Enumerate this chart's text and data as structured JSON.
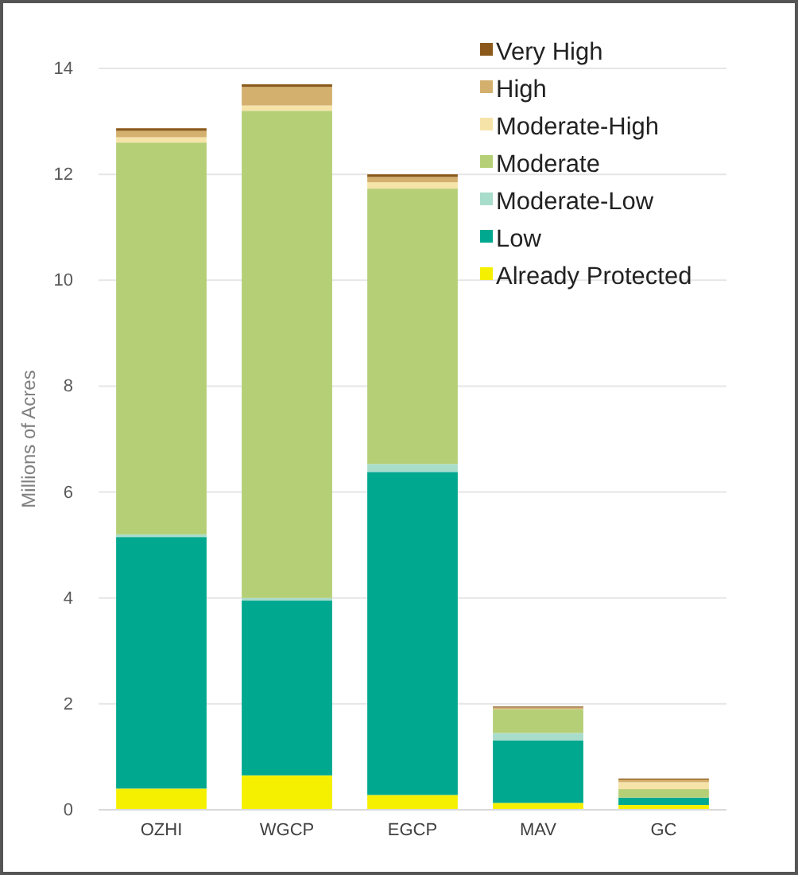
{
  "chart_data": {
    "type": "bar",
    "stacked": true,
    "ylabel": "Millions of Acres",
    "categories": [
      "OZHI",
      "WGCP",
      "EGCP",
      "MAV",
      "GC"
    ],
    "ylim": [
      0,
      14
    ],
    "yticks": [
      0,
      2,
      4,
      6,
      8,
      10,
      12,
      14
    ],
    "grid": "y",
    "legend": "top right",
    "series": [
      {
        "name": "Already Protected",
        "color": "#f5f000",
        "values": [
          0.4,
          0.65,
          0.28,
          0.13,
          0.09
        ]
      },
      {
        "name": "Low",
        "color": "#00a88f",
        "values": [
          4.75,
          3.3,
          6.1,
          1.18,
          0.14
        ]
      },
      {
        "name": "Moderate-Low",
        "color": "#a8dccb",
        "values": [
          0.05,
          0.05,
          0.15,
          0.14,
          null
        ]
      },
      {
        "name": "Moderate",
        "color": "#b5cf76",
        "values": [
          7.4,
          9.2,
          5.2,
          0.45,
          0.16
        ]
      },
      {
        "name": "Moderate-High",
        "color": "#f6e3a8",
        "values": [
          0.1,
          0.1,
          0.12,
          null,
          0.13
        ]
      },
      {
        "name": "High",
        "color": "#d4b06e",
        "values": [
          0.12,
          0.35,
          0.1,
          0.03,
          0.05
        ]
      },
      {
        "name": "Very High",
        "color": "#8b5a1b",
        "values": [
          0.05,
          0.05,
          0.05,
          0.02,
          0.02
        ]
      }
    ]
  }
}
